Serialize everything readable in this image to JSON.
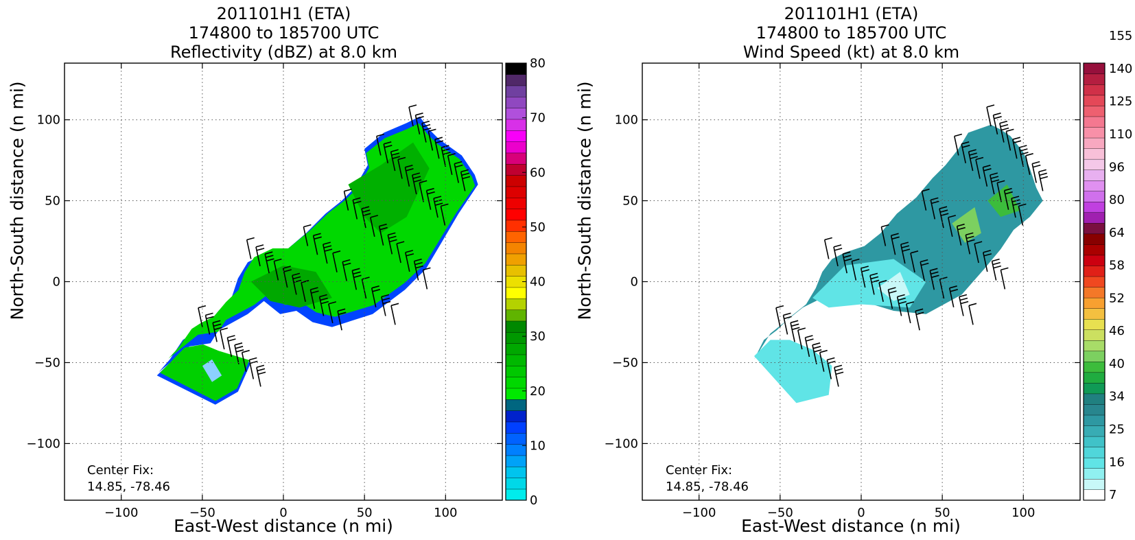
{
  "chart_data": [
    {
      "type": "heatmap",
      "title": [
        "201101H1 (ETA)",
        "174800 to 185700 UTC",
        "Reflectivity (dBZ) at 8.0 km"
      ],
      "xlabel": "East-West distance (n mi)",
      "ylabel": "North-South distance (n mi)",
      "xlim": [
        -135,
        135
      ],
      "ylim": [
        -135,
        135
      ],
      "xticks": [
        -100,
        -50,
        0,
        50,
        100
      ],
      "yticks": [
        -100,
        -50,
        0,
        50,
        100
      ],
      "xtick_labels": [
        "−100",
        "−50",
        "0",
        "50",
        "100"
      ],
      "ytick_labels": [
        "−100",
        "−50",
        "0",
        "50",
        "100"
      ],
      "grid": true,
      "annotation": [
        "Center Fix:",
        "14.85, -78.46"
      ],
      "colorbar": {
        "min": 0,
        "max": 80,
        "step": 2.5,
        "tick_values": [
          0,
          10,
          20,
          30,
          40,
          50,
          60,
          70,
          80
        ],
        "tick_labels": [
          "0",
          "10",
          "20",
          "30",
          "40",
          "50",
          "60",
          "70",
          "80"
        ],
        "colors": [
          "#00ecec",
          "#00d8e8",
          "#00c4ee",
          "#00a2f8",
          "#0080ff",
          "#0062ff",
          "#0040ff",
          "#0022cc",
          "#006680",
          "#00e800",
          "#00d800",
          "#00c800",
          "#00b800",
          "#00a800",
          "#009800",
          "#008800",
          "#60b400",
          "#b4d200",
          "#ffff00",
          "#ece000",
          "#e8c000",
          "#f0a000",
          "#f48400",
          "#ff6400",
          "#ff3000",
          "#ff0000",
          "#ee0000",
          "#dd0000",
          "#cc0000",
          "#c00030",
          "#d8007a",
          "#ec00cc",
          "#f800f8",
          "#d830e8",
          "#b050dc",
          "#9048c0",
          "#7040a0",
          "#502868",
          "#000000"
        ]
      },
      "wind_barbs": true
    },
    {
      "type": "heatmap",
      "title": [
        "201101H1 (ETA)",
        "174800 to 185700 UTC",
        "Wind Speed (kt) at 8.0 km"
      ],
      "xlabel": "East-West distance (n mi)",
      "ylabel": "North-South distance (n mi)",
      "xlim": [
        -135,
        135
      ],
      "ylim": [
        -135,
        135
      ],
      "xticks": [
        -100,
        -50,
        0,
        50,
        100
      ],
      "yticks": [
        -100,
        -50,
        0,
        50,
        100
      ],
      "xtick_labels": [
        "−100",
        "−50",
        "0",
        "50",
        "100"
      ],
      "ytick_labels": [
        "−100",
        "−50",
        "0",
        "50",
        "100"
      ],
      "grid": true,
      "annotation": [
        "Center Fix:",
        "14.85, -78.46"
      ],
      "colorbar": {
        "bins": 40,
        "tick_labels": [
          "7",
          "16",
          "25",
          "34",
          "40",
          "46",
          "52",
          "58",
          "64",
          "80",
          "96",
          "110",
          "125",
          "140",
          "155"
        ],
        "tick_bins": [
          0,
          3,
          6,
          9,
          12,
          15,
          18,
          21,
          24,
          27,
          30,
          33,
          36,
          39,
          42
        ],
        "colors": [
          "#ffffff",
          "#c8f8f8",
          "#90f0f0",
          "#60e4e6",
          "#50d6da",
          "#40c2c8",
          "#38acb4",
          "#2e98a2",
          "#28868e",
          "#208080",
          "#109a56",
          "#20ac40",
          "#3cbc3c",
          "#7cd060",
          "#a8dc68",
          "#cce060",
          "#e8e050",
          "#f4c040",
          "#f8a030",
          "#f47828",
          "#f04820",
          "#e02018",
          "#cc0010",
          "#aa0000",
          "#880000",
          "#7a1040",
          "#a020b0",
          "#c040e0",
          "#d070ec",
          "#e090f0",
          "#e8b0f0",
          "#f4c8e8",
          "#f8c0d8",
          "#f8a8c0",
          "#f890a8",
          "#f47890",
          "#ee6070",
          "#e44858",
          "#d03048",
          "#b41e40",
          "#96103c"
        ]
      },
      "wind_barbs": true
    }
  ]
}
